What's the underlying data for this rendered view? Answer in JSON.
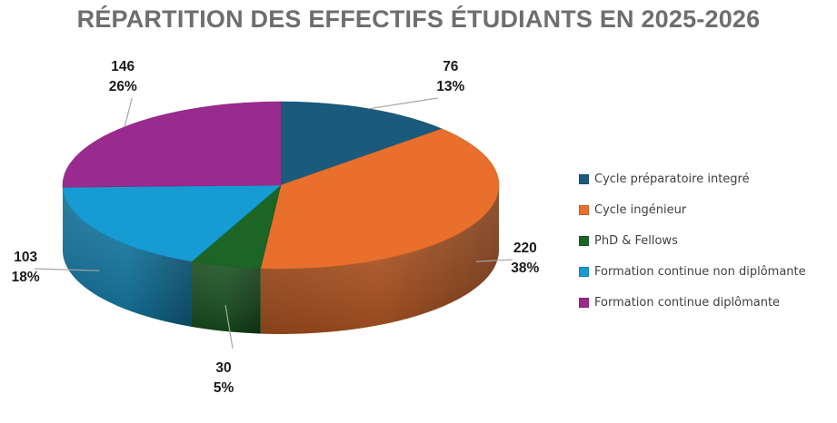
{
  "chart_data": {
    "type": "pie",
    "title": "RÉPARTITION DES EFFECTIFS ÉTUDIANTS EN 2025-2026",
    "series": [
      {
        "name": "Cycle préparatoire integré",
        "value": 76,
        "percent_label": "13%",
        "color": "#1a5a7c"
      },
      {
        "name": "Cycle ingénieur",
        "value": 220,
        "percent_label": "38%",
        "color": "#e86f2c"
      },
      {
        "name": "PhD & Fellows",
        "value": 30,
        "percent_label": "5%",
        "color": "#1c6524"
      },
      {
        "name": "Formation continue non diplômante",
        "value": 103,
        "percent_label": "18%",
        "color": "#169bd3"
      },
      {
        "name": "Formation continue diplômante",
        "value": 146,
        "percent_label": "26%",
        "color": "#9a2b8e"
      }
    ],
    "legend_placement": "right",
    "style": "3d"
  }
}
